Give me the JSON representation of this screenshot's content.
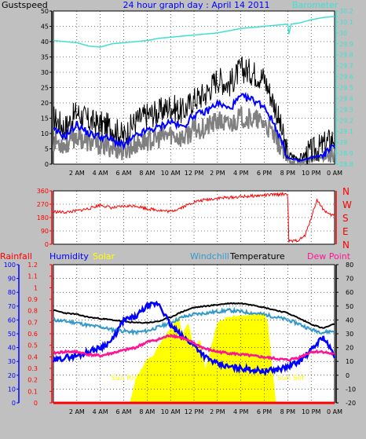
{
  "header": {
    "title": "24 hour graph day : April 14 2011",
    "left_label": "Gustspeed",
    "right_label": "Barometer"
  },
  "colors": {
    "background": "#c0c0c0",
    "plot": "#ffffff",
    "gust": "#000000",
    "wind": "#0000ff",
    "wind_low": "#808080",
    "barometer": "#40e0d0",
    "direction": "#ff0000",
    "rainfall": "#ff0000",
    "humidity": "#0000ff",
    "solar": "#ffff00",
    "windchill": "#3399cc",
    "temperature": "#000000",
    "dewpoint": "#ff1493"
  },
  "time_ticks": [
    "2 AM",
    "4 AM",
    "6 AM",
    "8 AM",
    "10 AM",
    "12 PM",
    "2 PM",
    "4 PM",
    "6 PM",
    "8 PM",
    "10 PM",
    "0 AM"
  ],
  "chart_data": [
    {
      "type": "line",
      "x_unit": "hours since midnight",
      "yleft_ticks": [
        "0",
        "5",
        "10",
        "15",
        "20",
        "25",
        "30",
        "35",
        "40",
        "45",
        "50"
      ],
      "yleft_range": [
        0,
        50
      ],
      "yright_ticks": [
        "28.8",
        "28.9",
        "29",
        "29.1",
        "29.2",
        "29.3",
        "29.4",
        "29.5",
        "29.6",
        "29.7",
        "29.8",
        "29.9",
        "30",
        "30.1",
        "30.2"
      ],
      "yright_range": [
        28.8,
        30.2
      ],
      "series": [
        {
          "name": "Gustspeed",
          "axis": "left",
          "x": [
            0,
            1,
            2,
            3,
            4,
            5,
            6,
            7,
            8,
            9,
            10,
            11,
            12,
            13,
            14,
            15,
            16,
            17,
            18,
            19,
            20,
            21,
            22,
            23,
            24
          ],
          "y": [
            15,
            12,
            17,
            14,
            13,
            12,
            9,
            14,
            16,
            17,
            19,
            17,
            21,
            23,
            28,
            26,
            31,
            30,
            28,
            18,
            3,
            2,
            4,
            6,
            9
          ]
        },
        {
          "name": "Windspeed",
          "axis": "left",
          "x": [
            0,
            1,
            2,
            3,
            4,
            5,
            6,
            7,
            8,
            9,
            10,
            11,
            12,
            13,
            14,
            15,
            16,
            17,
            18,
            19,
            20,
            21,
            22,
            23,
            24
          ],
          "y": [
            11,
            9,
            13,
            10,
            9,
            8,
            6,
            9,
            11,
            12,
            14,
            12,
            16,
            17,
            20,
            18,
            22,
            21,
            19,
            12,
            2,
            1,
            2,
            3,
            6
          ]
        },
        {
          "name": "Barometer",
          "axis": "right",
          "x": [
            0,
            1,
            2,
            3,
            4,
            5,
            6,
            7,
            8,
            9,
            10,
            11,
            12,
            13,
            14,
            15,
            16,
            17,
            18,
            19,
            20,
            20.1,
            20.3,
            21,
            22,
            23,
            24
          ],
          "y": [
            29.93,
            29.92,
            29.91,
            29.88,
            29.87,
            29.9,
            29.91,
            29.92,
            29.93,
            29.95,
            29.96,
            29.97,
            29.98,
            29.99,
            30.0,
            30.02,
            30.04,
            30.05,
            30.06,
            30.07,
            30.08,
            29.99,
            30.08,
            30.09,
            30.12,
            30.14,
            30.15
          ]
        }
      ]
    },
    {
      "type": "scatter",
      "x_unit": "hours since midnight",
      "yleft_ticks": [
        "0",
        "90",
        "180",
        "270",
        "360"
      ],
      "yleft_range": [
        0,
        360
      ],
      "yright_ticks": [
        "N",
        "E",
        "S",
        "W",
        "N"
      ],
      "series": [
        {
          "name": "Wind Direction",
          "x": [
            0,
            1,
            2,
            3,
            4,
            5,
            6,
            7,
            8,
            9,
            10,
            11,
            12,
            13,
            14,
            15,
            16,
            17,
            18,
            19,
            20,
            20.1,
            20.5,
            21,
            21.5,
            22,
            22.5,
            23,
            23.5,
            24
          ],
          "y": [
            220,
            215,
            225,
            240,
            265,
            245,
            255,
            260,
            240,
            230,
            220,
            250,
            285,
            300,
            310,
            315,
            320,
            325,
            330,
            335,
            340,
            20,
            20,
            30,
            60,
            180,
            300,
            240,
            200,
            195
          ]
        }
      ]
    },
    {
      "type": "line",
      "x_unit": "hours since midnight",
      "yleft_ticks": [
        "0",
        "10",
        "20",
        "30",
        "40",
        "50",
        "60",
        "70",
        "80",
        "90",
        "100"
      ],
      "yleft_range": [
        0,
        100
      ],
      "yleft2_ticks": [
        "0",
        "0.1",
        "0.2",
        "0.3",
        "0.4",
        "0.5",
        "0.6",
        "0.7",
        "0.8",
        "0.9",
        "1",
        "1.1",
        "1.2"
      ],
      "yleft2_range": [
        0,
        1.2
      ],
      "yright_ticks": [
        "-20",
        "-10",
        "0",
        "10",
        "20",
        "30",
        "40",
        "50",
        "60",
        "70",
        "80"
      ],
      "yright_range": [
        -20,
        80
      ],
      "legend": [
        "Rainfall",
        "Humidity",
        "Solar",
        "Windchill",
        "Temperature",
        "Dew Point"
      ],
      "annotations": [
        "Sun Rise",
        "Sun Set"
      ],
      "series": [
        {
          "name": "Temperature",
          "axis": "right",
          "x": [
            0,
            1,
            2,
            3,
            4,
            5,
            6,
            7,
            8,
            9,
            10,
            11,
            12,
            13,
            14,
            15,
            16,
            17,
            18,
            19,
            20,
            21,
            22,
            23,
            24
          ],
          "y": [
            47,
            45,
            44,
            42,
            41,
            40,
            39,
            38,
            38,
            39,
            42,
            46,
            49,
            50,
            51,
            52,
            52,
            51,
            49,
            47,
            45,
            41,
            37,
            34,
            37
          ]
        },
        {
          "name": "Windchill",
          "axis": "right",
          "x": [
            0,
            1,
            2,
            3,
            4,
            5,
            6,
            7,
            8,
            9,
            10,
            11,
            12,
            13,
            14,
            15,
            16,
            17,
            18,
            19,
            20,
            21,
            22,
            23,
            24
          ],
          "y": [
            40,
            39,
            38,
            36,
            35,
            33,
            32,
            31,
            32,
            35,
            38,
            42,
            44,
            45,
            46,
            47,
            46,
            45,
            44,
            42,
            40,
            37,
            33,
            31,
            32
          ]
        },
        {
          "name": "Humidity",
          "axis": "left",
          "x": [
            0,
            1,
            2,
            3,
            4,
            5,
            6,
            7,
            8,
            9,
            10,
            11,
            12,
            13,
            14,
            15,
            16,
            17,
            18,
            19,
            20,
            21,
            22,
            23,
            24
          ],
          "y": [
            30,
            33,
            34,
            37,
            40,
            45,
            60,
            62,
            70,
            72,
            56,
            48,
            42,
            33,
            28,
            26,
            25,
            24,
            23,
            24,
            26,
            30,
            38,
            48,
            34
          ]
        },
        {
          "name": "Dew Point",
          "axis": "right",
          "x": [
            0,
            1,
            2,
            3,
            4,
            5,
            6,
            7,
            8,
            9,
            10,
            11,
            12,
            13,
            14,
            15,
            16,
            17,
            18,
            19,
            20,
            21,
            22,
            23,
            24
          ],
          "y": [
            16,
            17,
            17,
            15,
            14,
            16,
            18,
            20,
            24,
            26,
            29,
            27,
            23,
            19,
            17,
            16,
            15,
            14,
            13,
            12,
            11,
            13,
            17,
            17,
            15
          ]
        },
        {
          "name": "Solar",
          "axis": "left2",
          "type": "area",
          "x": [
            0,
            6.5,
            7,
            7.5,
            8,
            8.5,
            9,
            10,
            10.7,
            11,
            11.5,
            12,
            12.5,
            13,
            13.5,
            14,
            15,
            16,
            17,
            18,
            18.3,
            19,
            24
          ],
          "y": [
            0,
            0,
            0.2,
            0.3,
            0.38,
            0.4,
            0.5,
            0.65,
            0.75,
            0.6,
            0.7,
            0.48,
            0.55,
            0.3,
            0.5,
            0.7,
            0.75,
            0.76,
            0.77,
            0.78,
            0.7,
            0,
            0
          ]
        },
        {
          "name": "Rainfall",
          "axis": "left2",
          "x": [
            0,
            24
          ],
          "y": [
            0,
            0
          ]
        }
      ]
    }
  ]
}
